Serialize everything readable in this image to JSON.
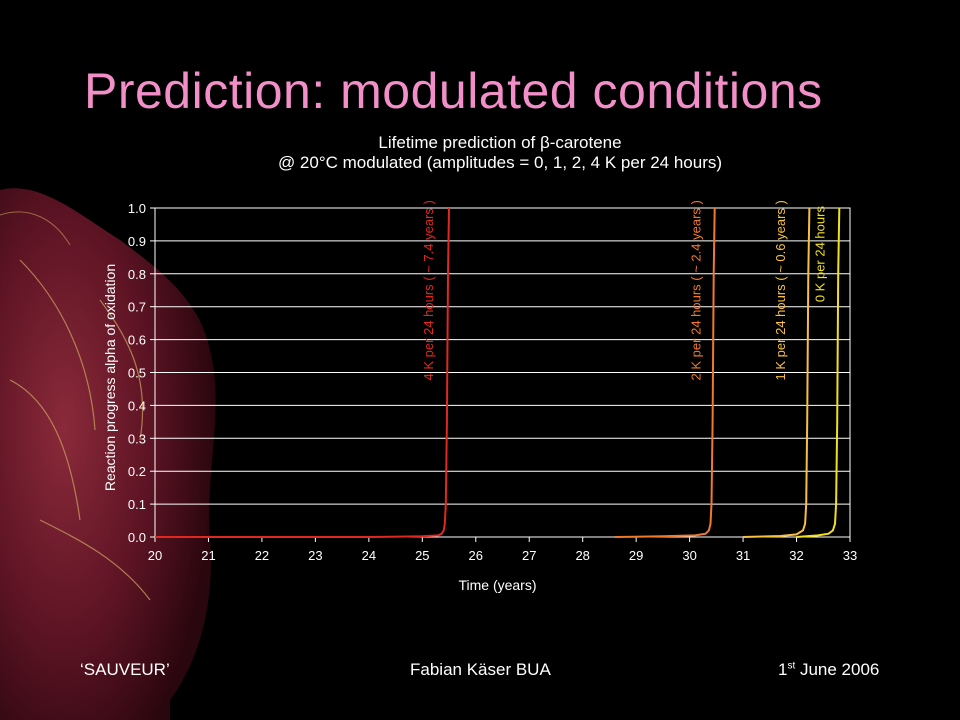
{
  "slide": {
    "title": "Prediction: modulated conditions",
    "footer_left": "‘SAUVEUR’",
    "footer_center": "Fabian Käser BUA",
    "footer_right_day": "1",
    "footer_right_suffix": "st",
    "footer_right_rest": " June 2006"
  },
  "colors": {
    "background": "#000000",
    "title": "#f28ec8",
    "series_4K": "#e0281e",
    "series_2K": "#f07a2a",
    "series_1K": "#f8c040",
    "series_0K": "#f0e020",
    "grid": "#ffffff"
  },
  "chart_data": {
    "type": "line",
    "title_line1": "Lifetime prediction of β-carotene",
    "title_line2": "@ 20°C modulated (amplitudes = 0, 1, 2, 4 K per 24 hours)",
    "xlabel": "Time (years)",
    "ylabel": "Reaction progress alpha of oxidation",
    "xlim": [
      20,
      33
    ],
    "ylim": [
      0.0,
      1.0
    ],
    "x_ticks": [
      "20",
      "21",
      "22",
      "23",
      "24",
      "25",
      "26",
      "27",
      "28",
      "29",
      "30",
      "31",
      "32",
      "33"
    ],
    "y_ticks": [
      "0.0",
      "0.1",
      "0.2",
      "0.3",
      "0.4",
      "0.5",
      "0.6",
      "0.7",
      "0.8",
      "0.9",
      "1.0"
    ],
    "grid": "horizontal",
    "series": [
      {
        "name": "4 K per 24 hours ( ~ 7.4 years )",
        "color": "#e0281e",
        "x": [
          20.0,
          24.0,
          25.0,
          25.3,
          25.36,
          25.4,
          25.42,
          25.44,
          25.46,
          25.48,
          25.5
        ],
        "y": [
          0.0,
          0.0,
          0.002,
          0.005,
          0.01,
          0.02,
          0.04,
          0.1,
          0.35,
          0.8,
          1.0
        ]
      },
      {
        "name": "2 K per 24 hours ( ~ 2.4 years )",
        "color": "#f07a2a",
        "x": [
          28.6,
          29.5,
          30.1,
          30.3,
          30.36,
          30.39,
          30.41,
          30.43,
          30.45,
          30.47
        ],
        "y": [
          0.0,
          0.002,
          0.005,
          0.01,
          0.02,
          0.04,
          0.1,
          0.35,
          0.8,
          1.0
        ]
      },
      {
        "name": "1 K per 24 hours ( ~ 0.6 years )",
        "color": "#f8c040",
        "x": [
          31.0,
          31.7,
          32.0,
          32.12,
          32.16,
          32.18,
          32.2,
          32.22,
          32.24
        ],
        "y": [
          0.0,
          0.003,
          0.008,
          0.02,
          0.04,
          0.1,
          0.35,
          0.8,
          1.0
        ]
      },
      {
        "name": "0 K per 24 hours",
        "color": "#f0e020",
        "x": [
          32.0,
          32.4,
          32.6,
          32.68,
          32.72,
          32.74,
          32.76,
          32.78,
          32.8
        ],
        "y": [
          0.0,
          0.005,
          0.01,
          0.02,
          0.04,
          0.1,
          0.35,
          0.8,
          1.0
        ]
      }
    ],
    "annotations": [
      "4 K per 24 hours ( ~ 7.4 years )",
      "2 K per 24 hours ( ~ 2.4 years )",
      "1 K per 24 hours ( ~ 0.6 years )",
      "0 K per 24 hours"
    ]
  }
}
